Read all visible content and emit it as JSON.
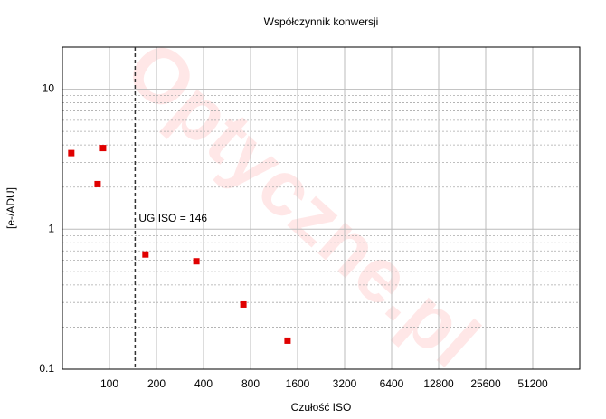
{
  "chart_data": {
    "type": "scatter",
    "title": "Współczynnik konwersji",
    "xlabel": "Czułość ISO",
    "ylabel": "[e-/ADU]",
    "watermark": "Optyczne.pl",
    "annotation": "UG ISO = 146",
    "vline": 146,
    "xscale": "log",
    "yscale": "log",
    "xlim": [
      50,
      102400
    ],
    "ylim": [
      0.1,
      20
    ],
    "xticks": [
      100,
      200,
      400,
      800,
      1600,
      3200,
      6400,
      12800,
      25600,
      51200
    ],
    "yticks": [
      0.1,
      1,
      10
    ],
    "yminor": [
      0.2,
      0.3,
      0.4,
      0.5,
      0.6,
      0.7,
      0.8,
      0.9,
      2,
      3,
      4,
      5,
      6,
      7,
      8,
      9
    ],
    "grid": true,
    "series": [
      {
        "color": "#e00000",
        "x": [
          57,
          84,
          91,
          170,
          360,
          720,
          1380
        ],
        "values": [
          3.5,
          2.1,
          3.8,
          0.66,
          0.59,
          0.29,
          0.16
        ]
      }
    ]
  }
}
